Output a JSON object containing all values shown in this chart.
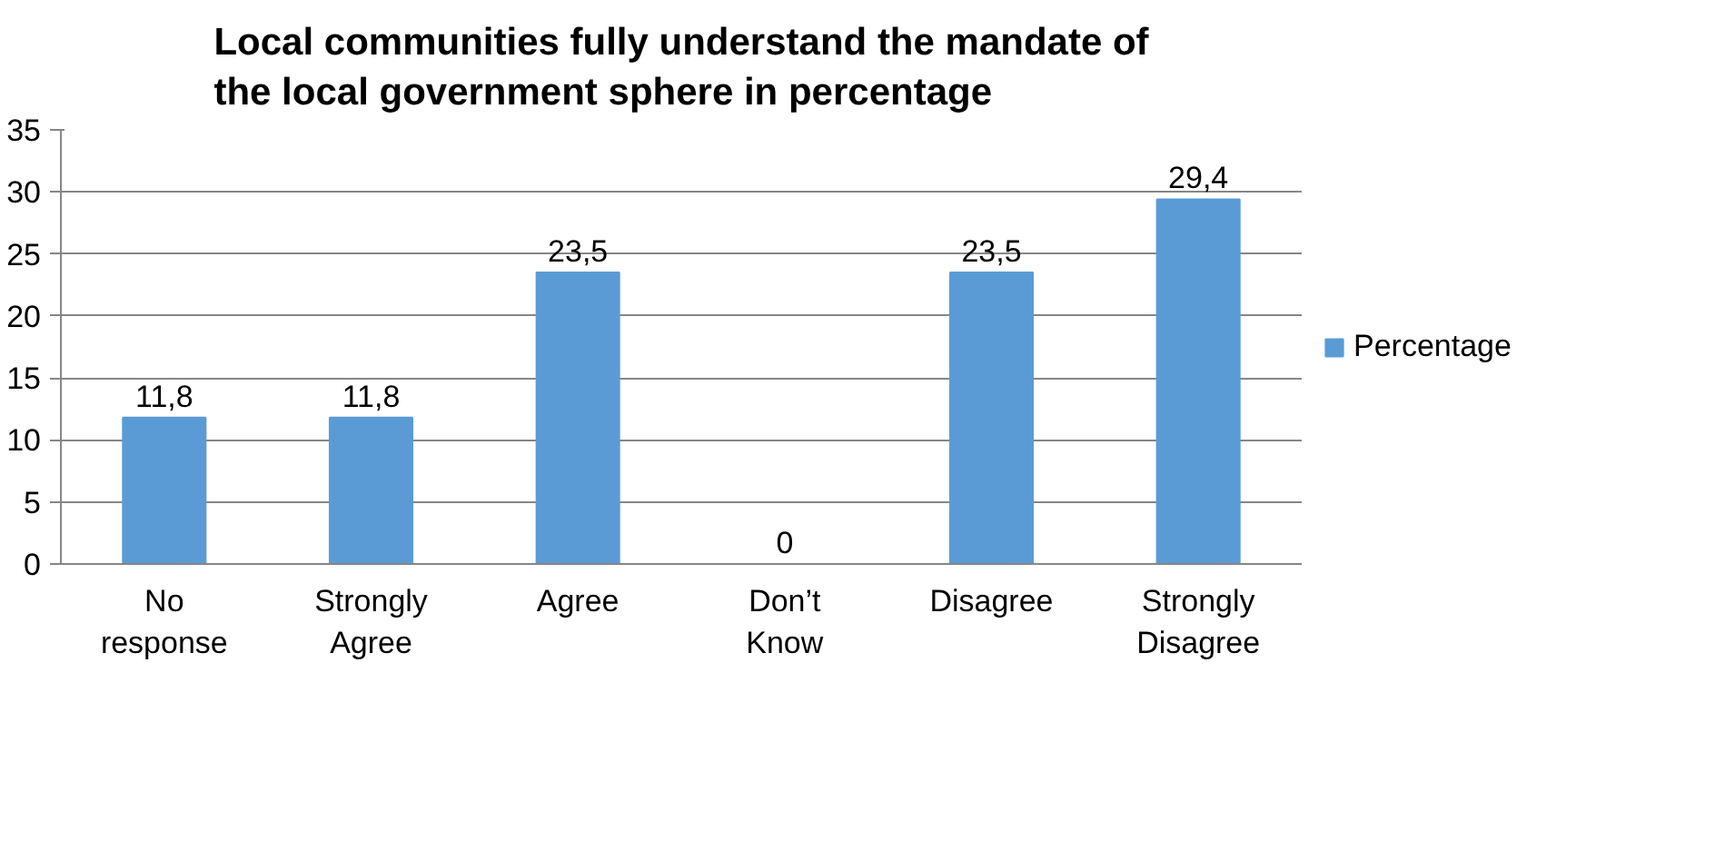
{
  "chart_data": {
    "type": "bar",
    "title": "Local communities fully understand the mandate of\nthe local government sphere in percentage",
    "categories": [
      "No response",
      "Strongly Agree",
      "Agree",
      "Don’t Know",
      "Disagree",
      "Strongly Disagree"
    ],
    "series": [
      {
        "name": "Percentage",
        "color": "#5b9bd5",
        "values": [
          11.8,
          11.8,
          23.5,
          0,
          23.5,
          29.4
        ],
        "value_labels": [
          "11,8",
          "11,8",
          "23,5",
          "0",
          "23,5",
          "29,4"
        ]
      }
    ],
    "ylim": [
      0,
      35
    ],
    "yticks": [
      0,
      5,
      10,
      15,
      20,
      25,
      30,
      35
    ],
    "grid": "y",
    "legend": "right"
  }
}
